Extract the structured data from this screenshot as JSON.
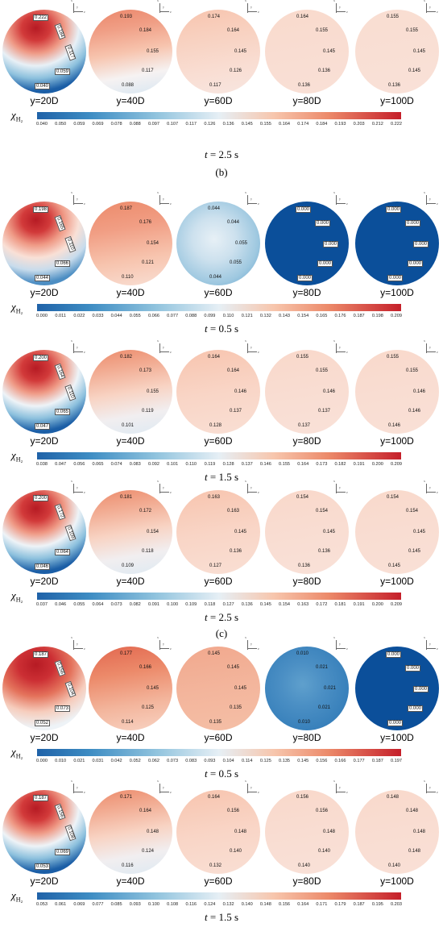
{
  "symbol": "χ",
  "symbol_sub": "H₂",
  "axis_labels": {
    "x": "x",
    "y": "y",
    "z": "z"
  },
  "positions": [
    "y=20D",
    "y=40D",
    "y=60D",
    "y=80D",
    "y=100D"
  ],
  "colors": {
    "low": "#1f62a8",
    "mid": "#e6eff5",
    "high": "#c51f2a"
  },
  "panels": [
    {
      "top": 0,
      "time_prefix": "t",
      "time_value": "= 2.5 s",
      "subfigure_after": "(b)",
      "min": 0.04,
      "max": 0.222,
      "ticks": [
        "0.040",
        "0.050",
        "0.059",
        "0.069",
        "0.078",
        "0.088",
        "0.097",
        "0.107",
        "0.117",
        "0.126",
        "0.136",
        "0.145",
        "0.155",
        "0.164",
        "0.174",
        "0.184",
        "0.193",
        "0.203",
        "0.212",
        "0.222"
      ],
      "disks": [
        {
          "colors": [
            "#b61b24",
            "#d23a3a",
            "#ef9a86",
            "#e8f0f6",
            "#8cc0dd",
            "#1b5ea6"
          ],
          "labels": [
            "0.222",
            "0.184",
            "0.117",
            "0.059",
            "0.040"
          ],
          "style": "core"
        },
        {
          "colors": [
            "#eb866a",
            "#f09f86",
            "#f7c4ae",
            "#f6f2f2",
            "#d7e6f1"
          ],
          "labels": [
            "0.193",
            "0.184",
            "0.155",
            "0.117",
            "0.088"
          ],
          "style": "grad"
        },
        {
          "colors": [
            "#f7c4ae",
            "#f8d1c0",
            "#f9ddd2",
            "#f8e6e0"
          ],
          "labels": [
            "0.174",
            "0.164",
            "0.145",
            "0.126",
            "0.117"
          ],
          "style": "grad"
        },
        {
          "colors": [
            "#f9dacc",
            "#f9ddd2",
            "#f9e0d6"
          ],
          "labels": [
            "0.164",
            "0.155",
            "0.145",
            "0.136",
            "0.136"
          ],
          "style": "grad"
        },
        {
          "colors": [
            "#f9ddd1",
            "#f9dfd4",
            "#f9e1d8"
          ],
          "labels": [
            "0.155",
            "0.155",
            "0.145",
            "0.145",
            "0.136"
          ],
          "style": "grad"
        }
      ]
    },
    {
      "top": 238,
      "time_prefix": "t",
      "time_value": "= 0.5 s",
      "subfigure_after": "",
      "min": 0.0,
      "max": 0.209,
      "ticks": [
        "0.000",
        "0.011",
        "0.022",
        "0.033",
        "0.044",
        "0.055",
        "0.066",
        "0.077",
        "0.088",
        "0.099",
        "0.110",
        "0.121",
        "0.132",
        "0.143",
        "0.154",
        "0.165",
        "0.176",
        "0.187",
        "0.198",
        "0.209"
      ],
      "disks": [
        {
          "colors": [
            "#b61b24",
            "#d23a3a",
            "#ef9a86",
            "#f9e0d6",
            "#c8dcec",
            "#4d8ec3"
          ],
          "labels": [
            "0.198",
            "0.165",
            "0.110",
            "0.066",
            "0.044"
          ],
          "style": "core"
        },
        {
          "colors": [
            "#ec8a6a",
            "#f19e84",
            "#f7c4ae",
            "#f9dfd4"
          ],
          "labels": [
            "0.187",
            "0.176",
            "0.154",
            "0.121",
            "0.110"
          ],
          "style": "grad"
        },
        {
          "colors": [
            "#e7f0f6",
            "#cde1ee",
            "#9ec8e0",
            "#5b9ccb"
          ],
          "labels": [
            "0.044",
            "0.044",
            "0.055",
            "0.055",
            "0.044"
          ],
          "style": "radial"
        },
        {
          "colors": [
            "#0b4f9a",
            "#0b4f9a"
          ],
          "labels": [
            "0.000",
            "0.000",
            "0.000",
            "0.000",
            "0.000"
          ],
          "style": "flat"
        },
        {
          "colors": [
            "#0b4f9a",
            "#0b4f9a"
          ],
          "labels": [
            "0.000",
            "0.000",
            "0.000",
            "0.000",
            "0.000"
          ],
          "style": "flat"
        }
      ]
    },
    {
      "top": 422,
      "time_prefix": "t",
      "time_value": "= 1.5 s",
      "subfigure_after": "",
      "min": 0.038,
      "max": 0.209,
      "ticks": [
        "0.038",
        "0.047",
        "0.056",
        "0.065",
        "0.074",
        "0.083",
        "0.092",
        "0.101",
        "0.110",
        "0.119",
        "0.128",
        "0.137",
        "0.146",
        "0.155",
        "0.164",
        "0.173",
        "0.182",
        "0.191",
        "0.200",
        "0.209"
      ],
      "disks": [
        {
          "colors": [
            "#b61b24",
            "#d23a3a",
            "#ef9a86",
            "#eef3f7",
            "#8cc0dd",
            "#1b5ea6"
          ],
          "labels": [
            "0.200",
            "0.164",
            "0.110",
            "0.065",
            "0.047"
          ],
          "style": "core"
        },
        {
          "colors": [
            "#ec8a6a",
            "#f2ad94",
            "#f8d3c3",
            "#f1eef0",
            "#dde9f2"
          ],
          "labels": [
            "0.182",
            "0.173",
            "0.155",
            "0.119",
            "0.101"
          ],
          "style": "grad"
        },
        {
          "colors": [
            "#f7c4ae",
            "#f9d5c6",
            "#f9dfd4"
          ],
          "labels": [
            "0.164",
            "0.164",
            "0.146",
            "0.137",
            "0.128"
          ],
          "style": "grad"
        },
        {
          "colors": [
            "#f9d8ca",
            "#f9ddd2",
            "#f9e1d8"
          ],
          "labels": [
            "0.155",
            "0.155",
            "0.146",
            "0.137",
            "0.137"
          ],
          "style": "grad"
        },
        {
          "colors": [
            "#f9d9cb",
            "#f9ddd2",
            "#f9e0d6"
          ],
          "labels": [
            "0.155",
            "0.155",
            "0.146",
            "0.146",
            "0.146"
          ],
          "style": "grad"
        }
      ]
    },
    {
      "top": 596,
      "time_prefix": "t",
      "time_value": "= 2.5 s",
      "subfigure_after": "(c)",
      "min": 0.037,
      "max": 0.209,
      "ticks": [
        "0.037",
        "0.046",
        "0.055",
        "0.064",
        "0.073",
        "0.082",
        "0.091",
        "0.100",
        "0.109",
        "0.118",
        "0.127",
        "0.136",
        "0.145",
        "0.154",
        "0.163",
        "0.172",
        "0.181",
        "0.191",
        "0.200",
        "0.209"
      ],
      "disks": [
        {
          "colors": [
            "#b61b24",
            "#d23a3a",
            "#ef9a86",
            "#eef3f7",
            "#8cc0dd",
            "#1b5ea6"
          ],
          "labels": [
            "0.200",
            "0.172",
            "0.109",
            "0.064",
            "0.046"
          ],
          "style": "core"
        },
        {
          "colors": [
            "#ec8a6a",
            "#f2ad94",
            "#f8d3c3",
            "#f1eef0",
            "#dde9f2"
          ],
          "labels": [
            "0.181",
            "0.172",
            "0.154",
            "0.118",
            "0.109"
          ],
          "style": "grad"
        },
        {
          "colors": [
            "#f7c4ae",
            "#f9d5c6",
            "#f9dfd4"
          ],
          "labels": [
            "0.163",
            "0.163",
            "0.145",
            "0.136",
            "0.127"
          ],
          "style": "grad"
        },
        {
          "colors": [
            "#f9d8ca",
            "#f9ddd2",
            "#f9e1d8"
          ],
          "labels": [
            "0.154",
            "0.154",
            "0.145",
            "0.136",
            "0.136"
          ],
          "style": "grad"
        },
        {
          "colors": [
            "#f9d9cb",
            "#f9ddd2",
            "#f9e0d6"
          ],
          "labels": [
            "0.154",
            "0.154",
            "0.145",
            "0.145",
            "0.145"
          ],
          "style": "grad"
        }
      ]
    },
    {
      "top": 790,
      "time_prefix": "t",
      "time_value": "= 0.5 s",
      "subfigure_after": "",
      "min": 0.0,
      "max": 0.197,
      "ticks": [
        "0.000",
        "0.010",
        "0.021",
        "0.031",
        "0.042",
        "0.052",
        "0.062",
        "0.073",
        "0.083",
        "0.093",
        "0.104",
        "0.114",
        "0.125",
        "0.135",
        "0.145",
        "0.156",
        "0.166",
        "0.177",
        "0.187",
        "0.197"
      ],
      "disks": [
        {
          "colors": [
            "#b61b24",
            "#cc2f34",
            "#e4735c",
            "#f6cdbd",
            "#eef3f7"
          ],
          "labels": [
            "0.187",
            "0.156",
            "0.104",
            "0.073",
            "0.052"
          ],
          "style": "core"
        },
        {
          "colors": [
            "#e2674f",
            "#ec8a6a",
            "#f3b59c",
            "#f8d3c3"
          ],
          "labels": [
            "0.177",
            "0.166",
            "0.145",
            "0.125",
            "0.114"
          ],
          "style": "grad"
        },
        {
          "colors": [
            "#f1a88d",
            "#f3b59c",
            "#f5bfa6"
          ],
          "labels": [
            "0.145",
            "0.145",
            "0.145",
            "0.135",
            "0.135"
          ],
          "style": "grad"
        },
        {
          "colors": [
            "#5fa0cd",
            "#4b8fc4",
            "#3a82bc",
            "#2a72b3"
          ],
          "labels": [
            "0.010",
            "0.021",
            "0.021",
            "0.021",
            "0.010"
          ],
          "style": "radial"
        },
        {
          "colors": [
            "#0b4f9a",
            "#0b4f9a"
          ],
          "labels": [
            "0.000",
            "0.000",
            "0.000",
            "0.000",
            "0.000"
          ],
          "style": "flat"
        }
      ]
    },
    {
      "top": 968,
      "time_prefix": "t",
      "time_value": "= 1.5 s",
      "subfigure_after": "",
      "min": 0.053,
      "max": 0.203,
      "ticks": [
        "0.053",
        "0.061",
        "0.069",
        "0.077",
        "0.085",
        "0.093",
        "0.100",
        "0.108",
        "0.116",
        "0.124",
        "0.132",
        "0.140",
        "0.148",
        "0.156",
        "0.164",
        "0.171",
        "0.179",
        "0.187",
        "0.195",
        "0.203"
      ],
      "disks": [
        {
          "colors": [
            "#b61b24",
            "#d23a3a",
            "#ef9a86",
            "#eef3f7",
            "#8cc0dd",
            "#1b5ea6"
          ],
          "labels": [
            "0.187",
            "0.156",
            "0.108",
            "0.069",
            "0.053"
          ],
          "style": "core"
        },
        {
          "colors": [
            "#ec8a6a",
            "#f2ad94",
            "#f8d3c3",
            "#f1eef0",
            "#dde9f2"
          ],
          "labels": [
            "0.171",
            "0.164",
            "0.148",
            "0.124",
            "0.116"
          ],
          "style": "grad"
        },
        {
          "colors": [
            "#f7c4ae",
            "#f9d5c6",
            "#f9dfd4"
          ],
          "labels": [
            "0.164",
            "0.156",
            "0.148",
            "0.140",
            "0.132"
          ],
          "style": "grad"
        },
        {
          "colors": [
            "#f9d8ca",
            "#f9ddd2",
            "#f9e1d8"
          ],
          "labels": [
            "0.156",
            "0.156",
            "0.148",
            "0.140",
            "0.140"
          ],
          "style": "grad"
        },
        {
          "colors": [
            "#f9d9cb",
            "#f9ddd2",
            "#f9e0d6"
          ],
          "labels": [
            "0.148",
            "0.148",
            "0.148",
            "0.148",
            "0.140"
          ],
          "style": "grad"
        }
      ]
    }
  ]
}
